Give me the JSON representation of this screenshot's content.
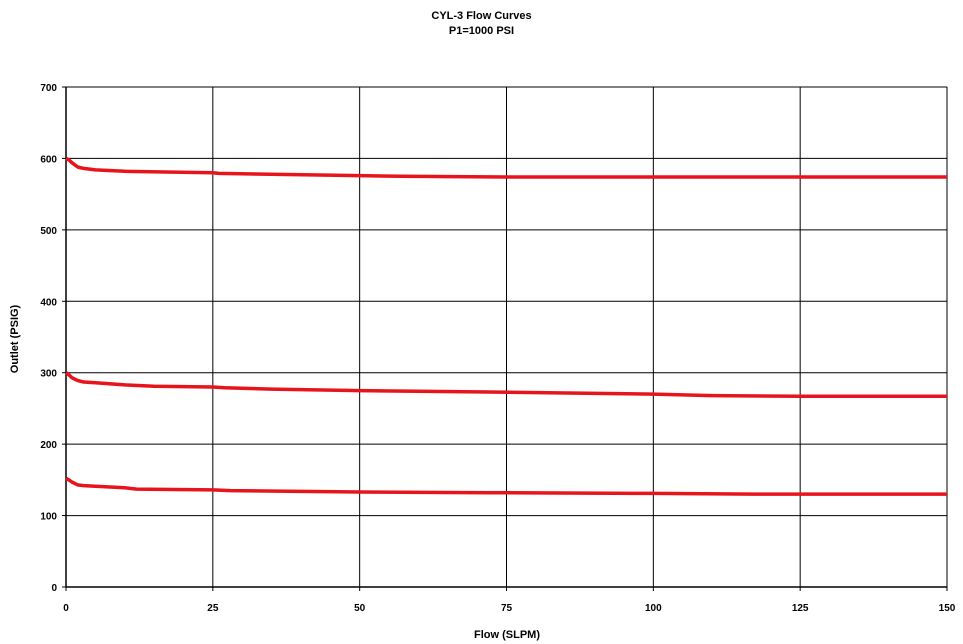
{
  "chart_data": {
    "type": "line",
    "title": "CYL-3 Flow Curves",
    "subtitle": "P1=1000 PSI",
    "xlabel": "Flow (SLPM)",
    "ylabel": "Outlet (PSIG)",
    "xlim": [
      0,
      150
    ],
    "ylim": [
      0,
      700
    ],
    "xticks": [
      0,
      25,
      50,
      75,
      100,
      125,
      150
    ],
    "yticks": [
      0,
      100,
      200,
      300,
      400,
      500,
      600,
      700
    ],
    "grid": true,
    "series_color": "#e8141c",
    "series": [
      {
        "x": [
          0,
          0.5,
          1,
          2,
          3,
          5,
          10,
          25,
          26,
          50,
          57,
          75,
          100,
          125,
          150
        ],
        "y": [
          600,
          598,
          594,
          588,
          586,
          584,
          582,
          580,
          579,
          576,
          575,
          574,
          574,
          574,
          574
        ]
      },
      {
        "x": [
          0,
          0.5,
          1,
          2,
          3,
          5,
          10,
          15,
          25,
          27,
          35,
          50,
          72,
          100,
          110,
          125,
          150
        ],
        "y": [
          300,
          297,
          293,
          289,
          287,
          286,
          283,
          281,
          280,
          279,
          277,
          275,
          273,
          270,
          268,
          267,
          267
        ]
      },
      {
        "x": [
          0,
          0.5,
          1,
          2,
          3,
          5,
          10,
          12,
          25,
          28,
          50,
          72,
          100,
          117,
          125,
          150
        ],
        "y": [
          152,
          150,
          147,
          143,
          142,
          141,
          139,
          137,
          136,
          135,
          133,
          132,
          131,
          130,
          130,
          130
        ]
      }
    ]
  }
}
